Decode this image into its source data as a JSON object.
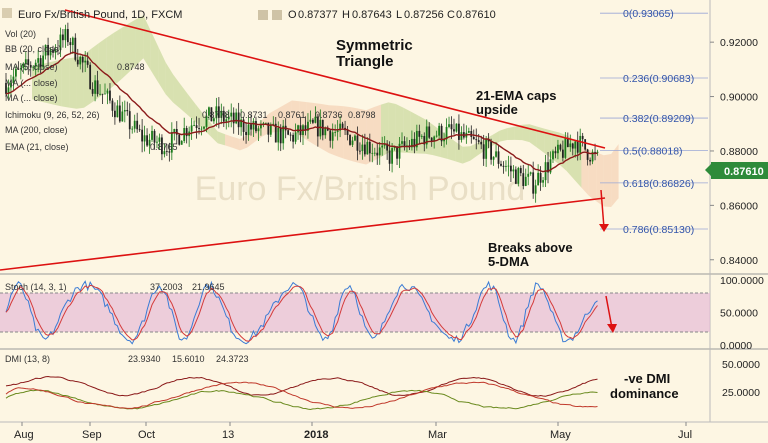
{
  "header": {
    "symbol": "Euro Fx/British Pound, 1D, FXCM",
    "o_label": "O",
    "o_value": "0.87377",
    "h_label": "H",
    "h_value": "0.87643",
    "l_label": "L",
    "l_value": "0.87256",
    "c_label": "C",
    "c_value": "0.87610"
  },
  "overlay_labels": {
    "vol": "Vol (20)",
    "bb": "BB (20, close)",
    "ma5": "MA (5, close)",
    "ma5_value": "0.8748",
    "ma_hidden1": "MA (... close)",
    "ma_hidden2": "MA (... close)",
    "ichimoku": "Ichimoku (9, 26, 52, 26)",
    "ichimoku_values": [
      "0.8778",
      "0.8731",
      "0.8761",
      "0.8736",
      "0.8798"
    ],
    "ma200": "MA (200, close)",
    "ema21": "EMA (21, close)",
    "ema21_value": "0.8765"
  },
  "annotations": {
    "pattern_line1": "Symmetric",
    "pattern_line2": "Triangle",
    "ema_line1": "21-EMA caps",
    "ema_line2": "upside",
    "breaks_line1": "Breaks above",
    "breaks_line2": "5-DMA",
    "dmi_line1": "-ve DMI",
    "dmi_line2": "dominance"
  },
  "watermark": "Euro Fx/British Pound",
  "fib_levels": [
    {
      "label": "0(0.93065)",
      "value": 0.93065
    },
    {
      "label": "0.236(0.90683)",
      "value": 0.90683
    },
    {
      "label": "0.382(0.89209)",
      "value": 0.89209
    },
    {
      "label": "0.5(0.88018)",
      "value": 0.88018
    },
    {
      "label": "0.618(0.86826)",
      "value": 0.86826
    },
    {
      "label": "0.786(0.85130)",
      "value": 0.8513
    }
  ],
  "price_axis": {
    "ticks": [
      "0.92000",
      "0.90000",
      "0.88000",
      "0.86000",
      "0.84000"
    ],
    "tick_values": [
      0.92,
      0.9,
      0.88,
      0.86,
      0.84
    ],
    "last_price": "0.87610",
    "range": [
      0.8355,
      0.9355
    ]
  },
  "x_axis": {
    "labels": [
      "Aug",
      "Sep",
      "Oct",
      "13",
      "2018",
      "Mar",
      "May",
      "Jul"
    ]
  },
  "stoch": {
    "label": "Stoch (14, 3, 1)",
    "k_value": "37.2003",
    "d_value": "21.9645",
    "ticks": [
      "100.0000",
      "50.0000",
      "0.0000"
    ],
    "tick_values": [
      100,
      50,
      0
    ],
    "overbought": 80,
    "oversold": 20
  },
  "dmi": {
    "label": "DMI (13, 8)",
    "values": [
      "23.9340",
      "15.6010",
      "24.3723"
    ],
    "ticks": [
      "50.0000",
      "25.0000"
    ],
    "tick_values": [
      50,
      25
    ]
  },
  "colors": {
    "background": "#fdf6e3",
    "trendline": "#dd1111",
    "candle_up": "#1a7a1a",
    "candle_down": "#222222",
    "ema": "#8b1a1a",
    "cloud_green": "#b9cf87",
    "cloud_red": "#f3c6a8",
    "stoch_band": "#e6bcd6",
    "stoch_k": "#3a7bd5",
    "stoch_d": "#d43b3b",
    "dmi_adx": "#8b1a1a",
    "dmi_plus": "#6a8a1e",
    "dmi_minus": "#c0392b",
    "last_price_box": "#2e8b3a",
    "fib_text": "#3355aa",
    "ma5_val": "#c0392b",
    "ichi_val1": "#3a7bd5",
    "ichi_val2": "#c0392b",
    "ichi_val3": "#6a8a1e",
    "ichi_val4": "#2a7a2a",
    "ichi_val5": "#c0392b"
  }
}
